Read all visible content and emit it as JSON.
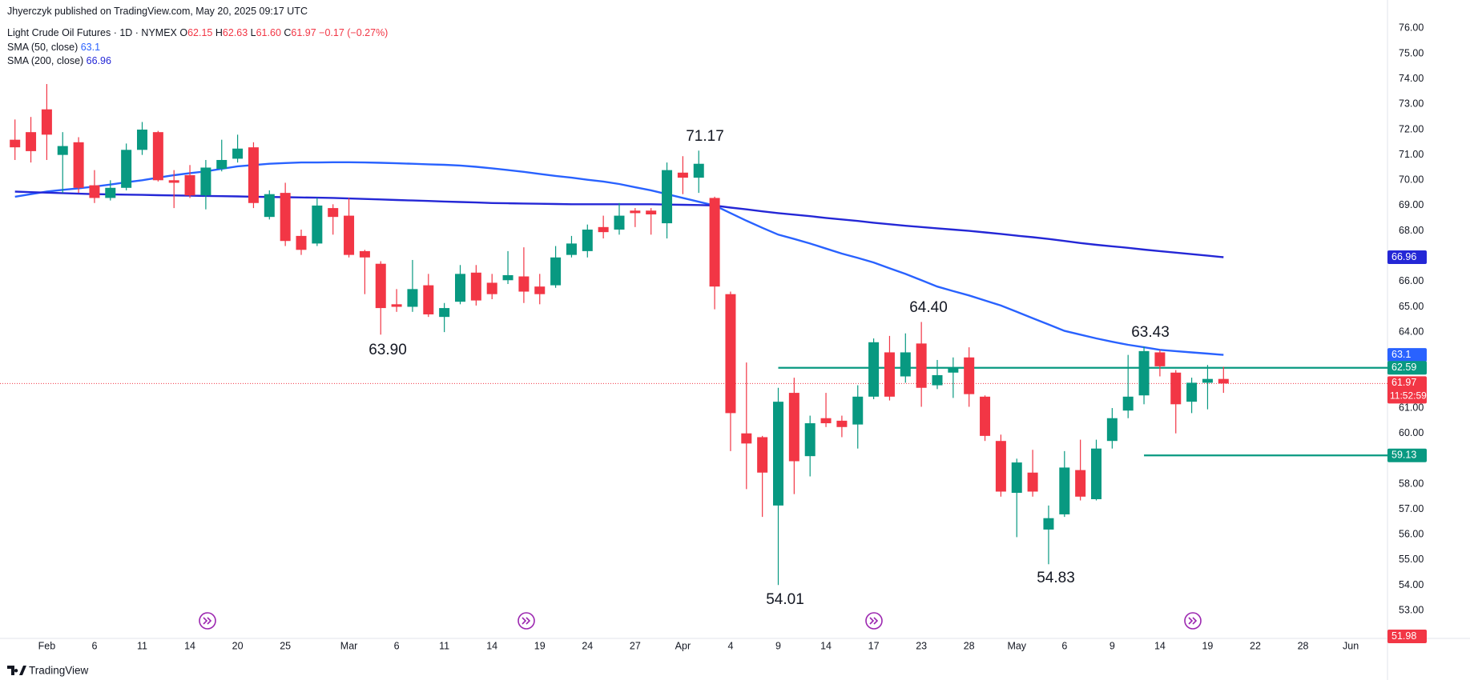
{
  "header": {
    "published": "Jhyerczyk published on TradingView.com, May 20, 2025 09:17 UTC",
    "ohlc": [
      {
        "key": "O",
        "value": "62.15"
      },
      {
        "key": "H",
        "value": "62.63"
      },
      {
        "key": "L",
        "value": "61.60"
      },
      {
        "key": "C",
        "value": "61.97"
      }
    ],
    "change": "−0.17 (−0.27%)"
  },
  "footer": {
    "brand": "TradingView"
  },
  "chart_data": {
    "type": "candlestick",
    "title": "Light Crude Oil Futures · 1D · NYMEX",
    "categories": [
      null,
      null,
      "Feb",
      null,
      null,
      "6",
      null,
      null,
      "11",
      null,
      null,
      "14",
      null,
      null,
      "20",
      null,
      null,
      "25",
      null,
      null,
      null,
      "Mar",
      null,
      null,
      "6",
      null,
      null,
      "11",
      null,
      null,
      "14",
      null,
      null,
      "19",
      null,
      null,
      "24",
      null,
      null,
      "27",
      null,
      null,
      "Apr",
      null,
      null,
      "4",
      null,
      null,
      "9",
      null,
      null,
      "14",
      null,
      null,
      "17",
      null,
      null,
      "23",
      null,
      null,
      "28",
      null,
      null,
      "May",
      null,
      null,
      "6",
      null,
      null,
      "9",
      null,
      null,
      "14",
      null,
      null,
      "19",
      null,
      null,
      "22",
      null,
      null,
      "28",
      null,
      null,
      "Jun"
    ],
    "open": [
      71.6,
      71.9,
      72.8,
      71.0,
      71.5,
      69.8,
      69.3,
      69.7,
      71.2,
      71.9,
      70.0,
      70.2,
      69.4,
      70.45,
      70.85,
      71.3,
      68.55,
      69.5,
      67.8,
      67.5,
      68.9,
      68.6,
      67.2,
      66.7,
      65.1,
      65.0,
      65.85,
      64.6,
      65.2,
      66.35,
      65.95,
      66.05,
      66.2,
      65.8,
      65.85,
      67.05,
      67.2,
      68.15,
      68.05,
      68.8,
      68.8,
      68.3,
      70.3,
      70.1,
      69.3,
      65.5,
      60.0,
      59.85,
      57.15,
      61.6,
      59.1,
      60.6,
      60.5,
      60.35,
      61.45,
      63.2,
      62.25,
      63.55,
      61.9,
      62.4,
      63.0,
      61.45,
      59.7,
      57.65,
      58.45,
      56.2,
      56.8,
      58.55,
      57.4,
      59.7,
      60.9,
      61.5,
      63.2,
      62.4,
      61.25,
      62.0,
      62.15,
      null,
      null,
      null,
      null,
      null,
      null,
      null,
      null
    ],
    "high": [
      72.4,
      72.5,
      73.8,
      71.9,
      71.7,
      70.4,
      70.0,
      71.45,
      72.3,
      71.95,
      70.4,
      70.6,
      70.8,
      71.6,
      71.8,
      71.5,
      69.6,
      69.9,
      68.05,
      69.3,
      69.05,
      69.3,
      67.25,
      66.8,
      65.7,
      66.85,
      66.3,
      65.15,
      66.65,
      66.65,
      66.3,
      67.2,
      67.35,
      66.3,
      67.4,
      67.8,
      68.25,
      68.6,
      69.1,
      68.9,
      68.9,
      70.7,
      70.95,
      71.17,
      69.35,
      65.6,
      62.8,
      59.9,
      61.8,
      62.2,
      60.7,
      61.6,
      60.7,
      61.9,
      63.75,
      63.85,
      63.95,
      64.4,
      62.9,
      63.0,
      63.4,
      61.5,
      59.95,
      59.0,
      59.35,
      57.15,
      59.3,
      59.75,
      59.75,
      61.0,
      63.1,
      63.43,
      63.3,
      62.5,
      62.2,
      62.7,
      62.63,
      null,
      null,
      null,
      null,
      null,
      null,
      null,
      null
    ],
    "low": [
      70.8,
      70.7,
      70.8,
      69.5,
      69.5,
      69.1,
      69.2,
      69.6,
      71.0,
      69.95,
      68.9,
      69.3,
      68.85,
      70.35,
      70.7,
      68.9,
      68.45,
      67.4,
      67.05,
      67.4,
      67.85,
      66.95,
      65.5,
      63.9,
      64.8,
      64.8,
      64.6,
      64.0,
      65.1,
      65.05,
      65.3,
      65.9,
      65.15,
      65.1,
      65.75,
      66.95,
      66.95,
      67.7,
      67.85,
      68.15,
      67.85,
      67.7,
      69.45,
      69.5,
      64.9,
      59.3,
      57.8,
      56.7,
      54.01,
      57.6,
      58.3,
      60.25,
      59.85,
      59.4,
      61.35,
      61.3,
      62.0,
      61.05,
      61.75,
      61.4,
      61.05,
      59.7,
      57.5,
      55.9,
      57.5,
      54.83,
      56.7,
      57.35,
      57.35,
      59.4,
      60.6,
      61.15,
      62.25,
      60.0,
      60.8,
      60.95,
      61.6,
      null,
      null,
      null,
      null,
      null,
      null,
      null,
      null
    ],
    "close": [
      71.3,
      71.15,
      71.8,
      71.35,
      69.7,
      69.3,
      69.7,
      71.2,
      72.0,
      70.0,
      69.9,
      69.4,
      70.5,
      70.8,
      71.25,
      69.1,
      69.45,
      67.6,
      67.25,
      69.0,
      68.55,
      67.05,
      66.95,
      64.95,
      65.0,
      65.7,
      64.7,
      64.95,
      66.3,
      65.25,
      65.5,
      66.25,
      65.6,
      65.5,
      66.95,
      67.5,
      68.05,
      67.95,
      68.6,
      68.7,
      68.65,
      70.4,
      70.1,
      70.65,
      65.8,
      60.8,
      59.6,
      58.45,
      61.25,
      58.9,
      60.4,
      60.4,
      60.25,
      61.45,
      63.6,
      61.45,
      63.2,
      61.8,
      62.3,
      62.6,
      61.55,
      59.9,
      57.7,
      58.85,
      57.7,
      56.65,
      58.65,
      57.5,
      59.4,
      60.6,
      61.45,
      63.25,
      62.65,
      61.15,
      62.0,
      62.15,
      61.97,
      null,
      null,
      null,
      null,
      null,
      null,
      null,
      null
    ],
    "up_color": "#089981",
    "down_color": "#f23645",
    "series": [
      {
        "name": "SMA (50, close)",
        "color": "#2962ff",
        "values": [
          69.35,
          69.45,
          69.55,
          69.62,
          69.68,
          69.75,
          69.83,
          69.92,
          70.0,
          70.1,
          70.2,
          70.28,
          70.35,
          70.45,
          70.55,
          70.6,
          70.65,
          70.68,
          70.7,
          70.7,
          70.71,
          70.71,
          70.7,
          70.69,
          70.67,
          70.65,
          70.63,
          70.61,
          70.58,
          70.53,
          70.47,
          70.4,
          70.33,
          70.25,
          70.17,
          70.1,
          70.02,
          69.95,
          69.85,
          69.72,
          69.6,
          69.45,
          69.3,
          69.15,
          69.0,
          68.7,
          68.4,
          68.12,
          67.85,
          67.68,
          67.5,
          67.3,
          67.1,
          66.93,
          66.75,
          66.52,
          66.3,
          66.05,
          65.8,
          65.62,
          65.45,
          65.25,
          65.05,
          64.8,
          64.55,
          64.3,
          64.05,
          63.9,
          63.75,
          63.62,
          63.5,
          63.4,
          63.3,
          63.25,
          63.2,
          63.15,
          63.1,
          null,
          null,
          null,
          null,
          null,
          null,
          null,
          null
        ]
      },
      {
        "name": "SMA (200, close)",
        "color": "#2427d6",
        "values": [
          69.55,
          69.53,
          69.51,
          69.49,
          69.47,
          69.45,
          69.44,
          69.43,
          69.42,
          69.41,
          69.4,
          69.39,
          69.38,
          69.37,
          69.36,
          69.35,
          69.34,
          69.33,
          69.32,
          69.31,
          69.3,
          69.28,
          69.26,
          69.24,
          69.22,
          69.2,
          69.18,
          69.16,
          69.14,
          69.12,
          69.1,
          69.09,
          69.08,
          69.07,
          69.06,
          69.05,
          69.05,
          69.05,
          69.05,
          69.05,
          69.05,
          69.04,
          69.03,
          69.02,
          69.0,
          68.92,
          68.85,
          68.77,
          68.7,
          68.64,
          68.58,
          68.51,
          68.45,
          68.39,
          68.32,
          68.26,
          68.2,
          68.15,
          68.1,
          68.05,
          68.0,
          67.94,
          67.88,
          67.81,
          67.75,
          67.68,
          67.6,
          67.52,
          67.45,
          67.39,
          67.33,
          67.26,
          67.2,
          67.14,
          67.08,
          67.02,
          66.96,
          null,
          null,
          null,
          null,
          null,
          null,
          null,
          null
        ]
      }
    ],
    "ylim": [
      51.9,
      77.12
    ],
    "yticks": [
      {
        "value": 76,
        "label": "76.00"
      },
      {
        "value": 75,
        "label": "75.00"
      },
      {
        "value": 74,
        "label": "74.00"
      },
      {
        "value": 73,
        "label": "73.00"
      },
      {
        "value": 72,
        "label": "72.00"
      },
      {
        "value": 71,
        "label": "71.00"
      },
      {
        "value": 70,
        "label": "70.00"
      },
      {
        "value": 69,
        "label": "69.00"
      },
      {
        "value": 68,
        "label": "68.00"
      },
      {
        "value": 67,
        "label": "67.00"
      },
      {
        "value": 66,
        "label": "66.00"
      },
      {
        "value": 65,
        "label": "65.00"
      },
      {
        "value": 64,
        "label": "64.00"
      },
      {
        "value": 61,
        "label": "61.00"
      },
      {
        "value": 60,
        "label": "60.00"
      },
      {
        "value": 58,
        "label": "58.00"
      },
      {
        "value": 57,
        "label": "57.00"
      },
      {
        "value": 56,
        "label": "56.00"
      },
      {
        "value": 55,
        "label": "55.00"
      },
      {
        "value": 54,
        "label": "54.00"
      },
      {
        "value": 53,
        "label": "53.00"
      }
    ],
    "grid": false,
    "levels": [
      {
        "value": 62.59,
        "color": "#089981"
      },
      {
        "value": 59.13,
        "color": "#089981"
      }
    ],
    "extra_price_tags": [
      {
        "value": 51.98,
        "color": "#f23645"
      }
    ],
    "countdown": "11:52:59",
    "annotations": [
      "71.17",
      "63.90",
      "54.01",
      "64.40",
      "63.43",
      "54.83"
    ]
  }
}
